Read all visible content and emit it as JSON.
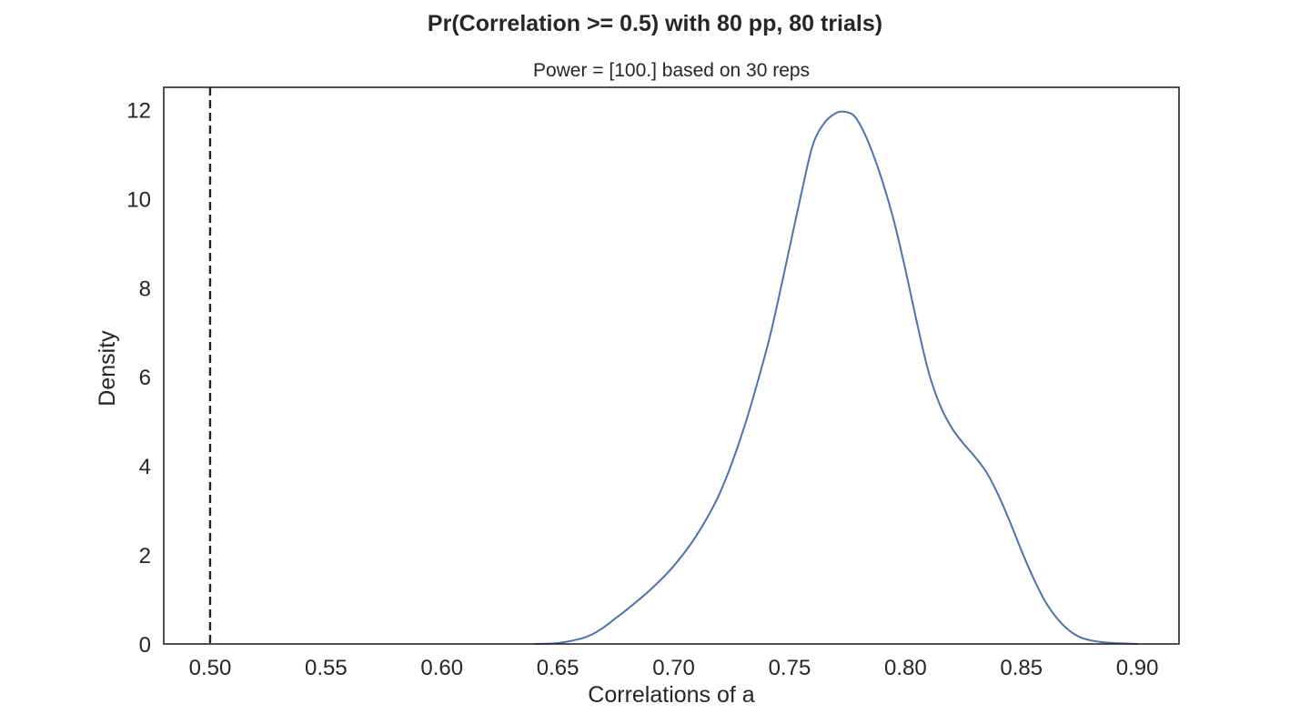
{
  "chart_data": {
    "type": "line",
    "title": "Pr(Correlation >= 0.5) with 80 pp, 80 trials)",
    "subtitle": "Power = [100.] based on 30 reps",
    "xlabel": "Correlations of a",
    "ylabel": "Density",
    "xlim": [
      0.48,
      0.918
    ],
    "ylim": [
      0,
      12.5
    ],
    "xticks": [
      0.5,
      0.55,
      0.6,
      0.65,
      0.7,
      0.75,
      0.8,
      0.85,
      0.9
    ],
    "xtick_labels": [
      "0.50",
      "0.55",
      "0.60",
      "0.65",
      "0.70",
      "0.75",
      "0.80",
      "0.85",
      "0.90"
    ],
    "yticks": [
      0,
      2,
      4,
      6,
      8,
      10,
      12
    ],
    "ytick_labels": [
      "0",
      "2",
      "4",
      "6",
      "8",
      "10",
      "12"
    ],
    "grid": false,
    "threshold_line": {
      "x": 0.5,
      "style": "dashed",
      "color": "#222222"
    },
    "series": [
      {
        "color": "#4c72b0",
        "x": [
          0.64,
          0.65,
          0.66,
          0.665,
          0.67,
          0.675,
          0.68,
          0.69,
          0.7,
          0.71,
          0.72,
          0.73,
          0.74,
          0.745,
          0.75,
          0.755,
          0.76,
          0.765,
          0.77,
          0.774,
          0.778,
          0.782,
          0.786,
          0.79,
          0.795,
          0.8,
          0.805,
          0.81,
          0.815,
          0.82,
          0.825,
          0.83,
          0.835,
          0.84,
          0.845,
          0.85,
          0.855,
          0.86,
          0.865,
          0.87,
          0.875,
          0.88,
          0.885,
          0.89,
          0.895,
          0.9
        ],
        "y": [
          0.0,
          0.02,
          0.12,
          0.22,
          0.38,
          0.58,
          0.78,
          1.22,
          1.75,
          2.45,
          3.4,
          4.8,
          6.6,
          7.7,
          8.9,
          10.1,
          11.2,
          11.7,
          11.92,
          11.95,
          11.85,
          11.5,
          11.0,
          10.4,
          9.5,
          8.4,
          7.2,
          6.1,
          5.35,
          4.85,
          4.5,
          4.2,
          3.85,
          3.35,
          2.75,
          2.1,
          1.5,
          0.98,
          0.6,
          0.33,
          0.16,
          0.08,
          0.04,
          0.02,
          0.01,
          0.0
        ]
      }
    ]
  }
}
